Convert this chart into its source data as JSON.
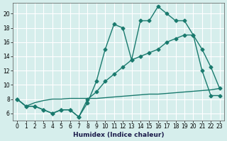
{
  "line1_x": [
    0,
    1,
    2,
    3,
    4,
    5,
    6,
    7,
    8,
    9,
    10,
    11,
    12,
    13,
    14,
    15,
    16,
    17,
    18,
    19,
    20,
    21,
    22,
    23
  ],
  "line1_y": [
    8.0,
    7.0,
    7.0,
    6.5,
    6.0,
    6.5,
    6.5,
    5.5,
    7.5,
    10.5,
    15.0,
    18.5,
    18.0,
    13.5,
    19.0,
    19.0,
    21.0,
    20.0,
    19.0,
    19.0,
    17.0,
    15.0,
    12.5,
    9.5
  ],
  "line2_x": [
    0,
    1,
    2,
    3,
    4,
    5,
    6,
    7,
    8,
    9,
    10,
    11,
    12,
    13,
    14,
    15,
    16,
    17,
    18,
    19,
    20,
    21,
    22,
    23
  ],
  "line2_y": [
    8.0,
    7.0,
    7.0,
    6.5,
    6.0,
    6.5,
    6.5,
    5.5,
    8.0,
    9.0,
    10.5,
    11.5,
    12.5,
    13.5,
    14.0,
    14.5,
    15.0,
    16.0,
    16.5,
    17.0,
    17.0,
    12.0,
    8.5,
    8.5
  ],
  "line3_x": [
    0,
    1,
    2,
    3,
    4,
    5,
    6,
    7,
    8,
    9,
    10,
    11,
    12,
    13,
    14,
    15,
    16,
    17,
    18,
    19,
    20,
    21,
    22,
    23
  ],
  "line3_y": [
    8.0,
    7.0,
    7.5,
    7.8,
    8.0,
    8.0,
    8.1,
    8.1,
    8.1,
    8.1,
    8.2,
    8.3,
    8.4,
    8.5,
    8.6,
    8.7,
    8.7,
    8.8,
    8.9,
    9.0,
    9.1,
    9.2,
    9.3,
    9.5
  ],
  "line_color": "#1a7a6e",
  "bg_color": "#d6eeec",
  "grid_color": "#b8dbd8",
  "xlabel": "Humidex (Indice chaleur)",
  "xlim": [
    -0.5,
    23.5
  ],
  "ylim": [
    5.0,
    21.5
  ],
  "yticks": [
    6,
    8,
    10,
    12,
    14,
    16,
    18,
    20
  ],
  "xticks": [
    0,
    1,
    2,
    3,
    4,
    5,
    6,
    7,
    8,
    9,
    10,
    11,
    12,
    13,
    14,
    15,
    16,
    17,
    18,
    19,
    20,
    21,
    22,
    23
  ],
  "xtick_labels": [
    "0",
    "1",
    "2",
    "3",
    "4",
    "5",
    "6",
    "7",
    "8",
    "9",
    "10",
    "11",
    "12",
    "13",
    "14",
    "15",
    "16",
    "17",
    "18",
    "19",
    "20",
    "21",
    "22",
    "23"
  ],
  "marker": "D",
  "markersize": 2.5,
  "linewidth": 1.0,
  "tick_fontsize": 5.5,
  "xlabel_fontsize": 6.5
}
